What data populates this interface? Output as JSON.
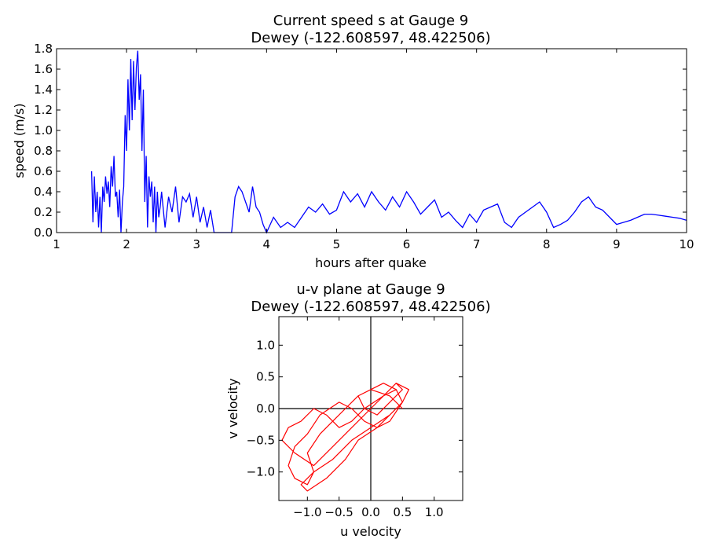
{
  "chart_data": [
    {
      "type": "line",
      "title": "Current speed s at Gauge 9",
      "subtitle": "Dewey  (-122.608597, 48.422506)",
      "xlabel": "hours after quake",
      "ylabel": "speed (m/s)",
      "xlim": [
        1,
        10
      ],
      "ylim": [
        0,
        1.8
      ],
      "xticks": [
        "1",
        "2",
        "3",
        "4",
        "5",
        "6",
        "7",
        "8",
        "9",
        "10"
      ],
      "yticks": [
        "0.0",
        "0.2",
        "0.4",
        "0.6",
        "0.8",
        "1.0",
        "1.2",
        "1.4",
        "1.6",
        "1.8"
      ],
      "grid": false,
      "series": [
        {
          "color": "#0000ff",
          "x": [
            1.5,
            1.52,
            1.54,
            1.56,
            1.58,
            1.6,
            1.62,
            1.64,
            1.66,
            1.68,
            1.7,
            1.72,
            1.74,
            1.76,
            1.78,
            1.8,
            1.82,
            1.84,
            1.86,
            1.88,
            1.9,
            1.92,
            1.94,
            1.96,
            1.98,
            2.0,
            2.02,
            2.04,
            2.06,
            2.08,
            2.1,
            2.12,
            2.14,
            2.16,
            2.18,
            2.2,
            2.22,
            2.24,
            2.26,
            2.28,
            2.3,
            2.32,
            2.34,
            2.36,
            2.38,
            2.4,
            2.42,
            2.44,
            2.46,
            2.48,
            2.5,
            2.55,
            2.6,
            2.65,
            2.7,
            2.75,
            2.8,
            2.85,
            2.9,
            2.95,
            3.0,
            3.05,
            3.1,
            3.15,
            3.2,
            3.25,
            3.3,
            3.35,
            3.4,
            3.45,
            3.5,
            3.55,
            3.6,
            3.65,
            3.7,
            3.75,
            3.8,
            3.85,
            3.9,
            3.95,
            4.0,
            4.1,
            4.2,
            4.3,
            4.4,
            4.5,
            4.6,
            4.7,
            4.8,
            4.9,
            5.0,
            5.1,
            5.2,
            5.3,
            5.4,
            5.5,
            5.6,
            5.7,
            5.8,
            5.9,
            6.0,
            6.1,
            6.2,
            6.3,
            6.4,
            6.5,
            6.6,
            6.7,
            6.8,
            6.9,
            7.0,
            7.1,
            7.2,
            7.3,
            7.4,
            7.5,
            7.6,
            7.7,
            7.8,
            7.9,
            8.0,
            8.1,
            8.2,
            8.3,
            8.4,
            8.5,
            8.6,
            8.7,
            8.8,
            8.9,
            9.0,
            9.1,
            9.2,
            9.3,
            9.4,
            9.5,
            9.6,
            9.7,
            9.8,
            9.9,
            10.0
          ],
          "y": [
            0.6,
            0.1,
            0.55,
            0.2,
            0.4,
            0.05,
            0.35,
            0.0,
            0.45,
            0.3,
            0.55,
            0.38,
            0.5,
            0.25,
            0.65,
            0.45,
            0.75,
            0.35,
            0.4,
            0.15,
            0.42,
            0.0,
            0.3,
            0.45,
            1.15,
            0.8,
            1.5,
            1.0,
            1.7,
            1.1,
            1.68,
            1.2,
            1.62,
            1.78,
            1.3,
            1.55,
            0.8,
            1.4,
            0.3,
            0.75,
            0.05,
            0.55,
            0.35,
            0.5,
            0.1,
            0.45,
            0.0,
            0.4,
            0.15,
            0.25,
            0.4,
            0.05,
            0.35,
            0.2,
            0.45,
            0.1,
            0.35,
            0.3,
            0.38,
            0.15,
            0.35,
            0.1,
            0.25,
            0.05,
            0.22,
            0.0,
            0.0,
            0.0,
            0.0,
            0.0,
            0.0,
            0.35,
            0.45,
            0.4,
            0.3,
            0.2,
            0.45,
            0.25,
            0.2,
            0.08,
            0.0,
            0.15,
            0.05,
            0.1,
            0.05,
            0.15,
            0.25,
            0.2,
            0.28,
            0.18,
            0.22,
            0.4,
            0.3,
            0.38,
            0.25,
            0.4,
            0.3,
            0.22,
            0.35,
            0.25,
            0.4,
            0.3,
            0.18,
            0.25,
            0.32,
            0.15,
            0.2,
            0.12,
            0.05,
            0.18,
            0.1,
            0.22,
            0.25,
            0.28,
            0.1,
            0.05,
            0.15,
            0.2,
            0.25,
            0.3,
            0.2,
            0.05,
            0.08,
            0.12,
            0.2,
            0.3,
            0.35,
            0.25,
            0.22,
            0.15,
            0.08,
            0.1,
            0.12,
            0.15,
            0.18,
            0.18,
            0.17,
            0.16,
            0.15,
            0.14,
            0.12
          ]
        }
      ]
    },
    {
      "type": "line",
      "title": "u-v plane at Gauge 9",
      "subtitle": "Dewey  (-122.608597, 48.422506)",
      "xlabel": "u velocity",
      "ylabel": "v velocity",
      "xlim": [
        -1.45,
        1.45
      ],
      "ylim": [
        -1.45,
        1.45
      ],
      "xticks": [
        "−1.0",
        "−0.5",
        "0.0",
        "0.5",
        "1.0"
      ],
      "yticks": [
        "−1.0",
        "−0.5",
        "0.0",
        "0.5",
        "1.0"
      ],
      "grid": false,
      "series": [
        {
          "color": "#ff0000",
          "x": [
            0.0,
            0.2,
            0.4,
            0.5,
            0.3,
            0.1,
            -0.1,
            -0.3,
            -0.5,
            -0.8,
            -1.0,
            -1.2,
            -1.3,
            -1.2,
            -1.0,
            -0.9,
            -1.0,
            -0.8,
            -0.6,
            -0.4,
            -0.2,
            0.0,
            0.2,
            0.4,
            0.5,
            0.3,
            0.0,
            -0.3,
            -0.6,
            -0.9,
            -1.1,
            -1.0,
            -0.7,
            -0.4,
            -0.2,
            0.1,
            0.3,
            0.5,
            0.6,
            0.4,
            0.2,
            -0.1,
            -0.3,
            -0.5,
            -0.7,
            -0.9,
            -1.1,
            -1.3,
            -1.4,
            -1.2,
            -0.9,
            -0.6,
            -0.3,
            0.0,
            0.2,
            0.4,
            0.5,
            0.3,
            0.1,
            -0.1,
            -0.2,
            0.0,
            0.3,
            0.5
          ],
          "y": [
            0.0,
            0.2,
            0.3,
            0.1,
            -0.2,
            -0.3,
            -0.2,
            0.0,
            0.1,
            -0.1,
            -0.4,
            -0.6,
            -0.9,
            -1.1,
            -1.2,
            -1.0,
            -0.7,
            -0.4,
            -0.2,
            0.0,
            0.2,
            0.3,
            0.4,
            0.3,
            0.1,
            -0.1,
            -0.3,
            -0.5,
            -0.8,
            -1.0,
            -1.2,
            -1.3,
            -1.1,
            -0.8,
            -0.5,
            -0.3,
            -0.1,
            0.1,
            0.3,
            0.4,
            0.2,
            0.0,
            -0.2,
            -0.3,
            -0.1,
            0.0,
            -0.2,
            -0.3,
            -0.5,
            -0.7,
            -0.9,
            -0.6,
            -0.3,
            0.0,
            0.2,
            0.4,
            0.3,
            0.1,
            -0.1,
            0.0,
            0.2,
            0.3,
            0.2,
            0.0
          ]
        }
      ]
    }
  ]
}
